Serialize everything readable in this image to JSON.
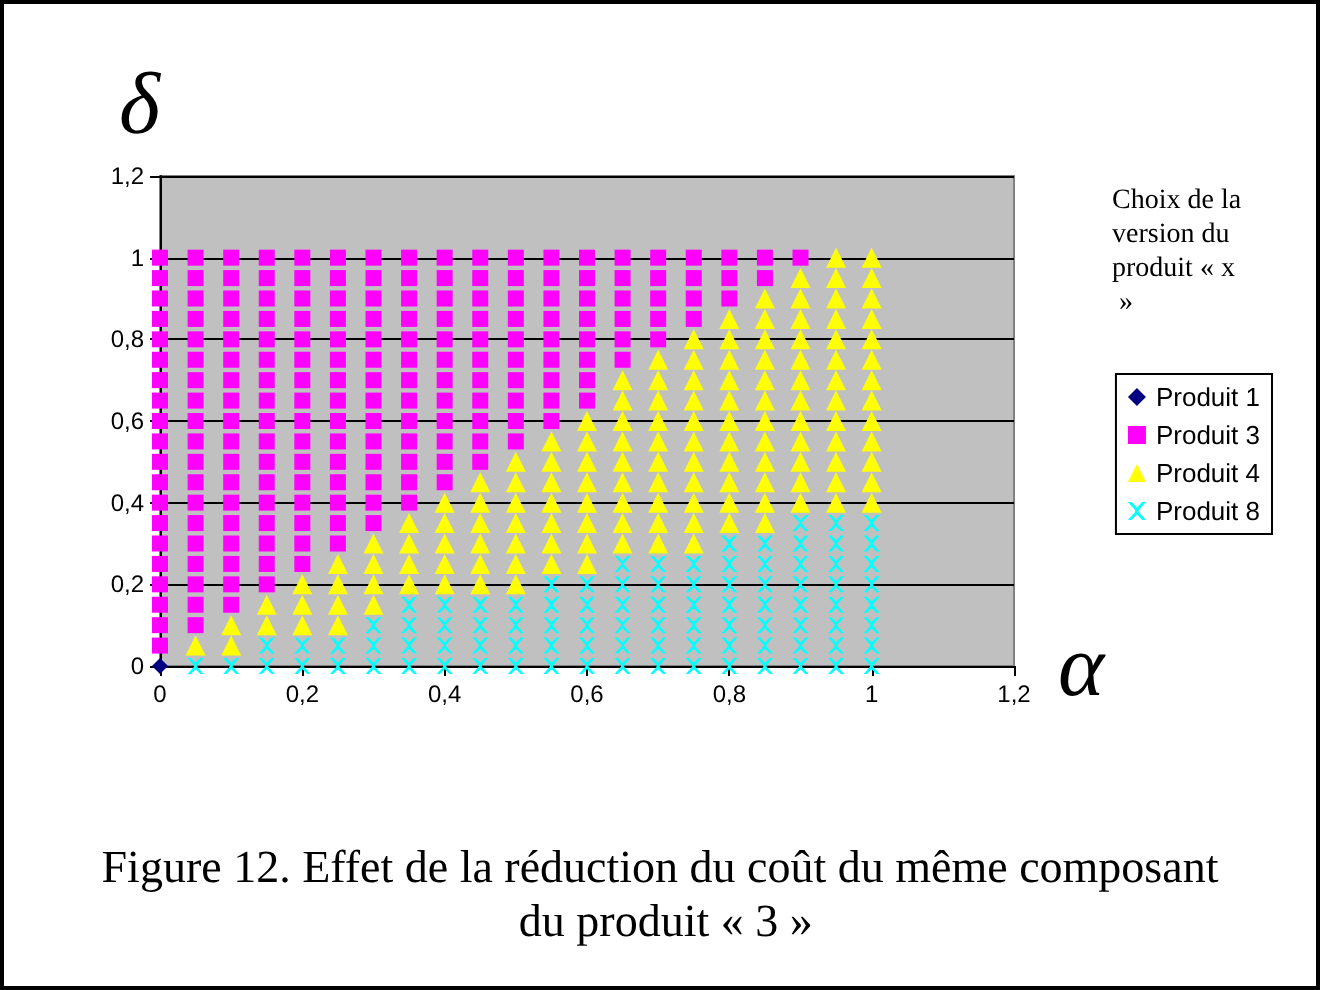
{
  "chart_data": {
    "type": "scatter",
    "title": "Figure 12. Effet de la réduction du coût du même composant du produit « 3 »",
    "xlabel": "α",
    "ylabel": "δ",
    "legend_title": "Choix de la version du produit « x »",
    "xlim": [
      0,
      1.2
    ],
    "ylim": [
      0,
      1.2
    ],
    "xticks": [
      0,
      {
        "value": 0.2,
        "label": "0,2"
      },
      {
        "value": 0.4,
        "label": "0,4"
      },
      {
        "value": 0.6,
        "label": "0,6"
      },
      {
        "value": 0.8,
        "label": "0,8"
      },
      1,
      {
        "value": 1.2,
        "label": "1,2"
      }
    ],
    "yticks": [
      0,
      {
        "value": 0.2,
        "label": "0,2"
      },
      {
        "value": 0.4,
        "label": "0,4"
      },
      {
        "value": 0.6,
        "label": "0,6"
      },
      {
        "value": 0.8,
        "label": "0,8"
      },
      1,
      {
        "value": 1.2,
        "label": "1,2"
      }
    ],
    "grid": "y",
    "legend": "right",
    "series": [
      {
        "name": "Produit 1",
        "color": "#000080",
        "marker": "diamond",
        "x": [
          0
        ],
        "values": [
          0
        ]
      },
      {
        "name": "Produit 3",
        "color": "#ff00ff",
        "marker": "square",
        "x": [
          0,
          0,
          0,
          0,
          0,
          0,
          0,
          0,
          0,
          0,
          0,
          0,
          0,
          0,
          0,
          0,
          0,
          0,
          0,
          0,
          0.05,
          0.05,
          0.05,
          0.05,
          0.05,
          0.05,
          0.05,
          0.05,
          0.05,
          0.05,
          0.05,
          0.05,
          0.05,
          0.05,
          0.05,
          0.05,
          0.05,
          0.05,
          0.05,
          0.1,
          0.1,
          0.1,
          0.1,
          0.1,
          0.1,
          0.1,
          0.1,
          0.1,
          0.1,
          0.1,
          0.1,
          0.1,
          0.1,
          0.1,
          0.1,
          0.1,
          0.1,
          0.15,
          0.15,
          0.15,
          0.15,
          0.15,
          0.15,
          0.15,
          0.15,
          0.15,
          0.15,
          0.15,
          0.15,
          0.15,
          0.15,
          0.15,
          0.15,
          0.15,
          0.2,
          0.2,
          0.2,
          0.2,
          0.2,
          0.2,
          0.2,
          0.2,
          0.2,
          0.2,
          0.2,
          0.2,
          0.2,
          0.2,
          0.2,
          0.2,
          0.25,
          0.25,
          0.25,
          0.25,
          0.25,
          0.25,
          0.25,
          0.25,
          0.25,
          0.25,
          0.25,
          0.25,
          0.25,
          0.25,
          0.25,
          0.3,
          0.3,
          0.3,
          0.3,
          0.3,
          0.3,
          0.3,
          0.3,
          0.3,
          0.3,
          0.3,
          0.3,
          0.3,
          0.3,
          0.35,
          0.35,
          0.35,
          0.35,
          0.35,
          0.35,
          0.35,
          0.35,
          0.35,
          0.35,
          0.35,
          0.35,
          0.35,
          0.4,
          0.4,
          0.4,
          0.4,
          0.4,
          0.4,
          0.4,
          0.4,
          0.4,
          0.4,
          0.4,
          0.4,
          0.45,
          0.45,
          0.45,
          0.45,
          0.45,
          0.45,
          0.45,
          0.45,
          0.45,
          0.45,
          0.45,
          0.5,
          0.5,
          0.5,
          0.5,
          0.5,
          0.5,
          0.5,
          0.5,
          0.5,
          0.5,
          0.55,
          0.55,
          0.55,
          0.55,
          0.55,
          0.55,
          0.55,
          0.55,
          0.55,
          0.6,
          0.6,
          0.6,
          0.6,
          0.6,
          0.6,
          0.6,
          0.6,
          0.65,
          0.65,
          0.65,
          0.65,
          0.65,
          0.65,
          0.7,
          0.7,
          0.7,
          0.7,
          0.7,
          0.75,
          0.75,
          0.75,
          0.75,
          0.8,
          0.8,
          0.8,
          0.85,
          0.85,
          0.9
        ],
        "values": [
          0.05,
          0.1,
          0.15,
          0.2,
          0.25,
          0.3,
          0.35,
          0.4,
          0.45,
          0.5,
          0.55,
          0.6,
          0.65,
          0.7,
          0.75,
          0.8,
          0.85,
          0.9,
          0.95,
          1,
          0.1,
          0.15,
          0.2,
          0.25,
          0.3,
          0.35,
          0.4,
          0.45,
          0.5,
          0.55,
          0.6,
          0.65,
          0.7,
          0.75,
          0.8,
          0.85,
          0.9,
          0.95,
          1,
          0.15,
          0.2,
          0.25,
          0.3,
          0.35,
          0.4,
          0.45,
          0.5,
          0.55,
          0.6,
          0.65,
          0.7,
          0.75,
          0.8,
          0.85,
          0.9,
          0.95,
          1,
          0.2,
          0.25,
          0.3,
          0.35,
          0.4,
          0.45,
          0.5,
          0.55,
          0.6,
          0.65,
          0.7,
          0.75,
          0.8,
          0.85,
          0.9,
          0.95,
          1,
          0.25,
          0.3,
          0.35,
          0.4,
          0.45,
          0.5,
          0.55,
          0.6,
          0.65,
          0.7,
          0.75,
          0.8,
          0.85,
          0.9,
          0.95,
          1,
          0.3,
          0.35,
          0.4,
          0.45,
          0.5,
          0.55,
          0.6,
          0.65,
          0.7,
          0.75,
          0.8,
          0.85,
          0.9,
          0.95,
          1,
          0.35,
          0.4,
          0.45,
          0.5,
          0.55,
          0.6,
          0.65,
          0.7,
          0.75,
          0.8,
          0.85,
          0.9,
          0.95,
          1,
          0.4,
          0.45,
          0.5,
          0.55,
          0.6,
          0.65,
          0.7,
          0.75,
          0.8,
          0.85,
          0.9,
          0.95,
          1,
          0.45,
          0.5,
          0.55,
          0.6,
          0.65,
          0.7,
          0.75,
          0.8,
          0.85,
          0.9,
          0.95,
          1,
          0.5,
          0.55,
          0.6,
          0.65,
          0.7,
          0.75,
          0.8,
          0.85,
          0.9,
          0.95,
          1,
          0.55,
          0.6,
          0.65,
          0.7,
          0.75,
          0.8,
          0.85,
          0.9,
          0.95,
          1,
          0.6,
          0.65,
          0.7,
          0.75,
          0.8,
          0.85,
          0.9,
          0.95,
          1,
          0.65,
          0.7,
          0.75,
          0.8,
          0.85,
          0.9,
          0.95,
          1,
          0.75,
          0.8,
          0.85,
          0.9,
          0.95,
          1,
          0.8,
          0.85,
          0.9,
          0.95,
          1,
          0.85,
          0.9,
          0.95,
          1,
          0.9,
          0.95,
          1,
          0.95,
          1,
          1
        ]
      },
      {
        "name": "Produit 4",
        "color": "#ffff00",
        "marker": "triangle",
        "x": [
          0.05,
          0.1,
          0.1,
          0.15,
          0.15,
          0.2,
          0.2,
          0.2,
          0.25,
          0.25,
          0.25,
          0.25,
          0.3,
          0.3,
          0.3,
          0.3,
          0.35,
          0.35,
          0.35,
          0.35,
          0.4,
          0.4,
          0.4,
          0.4,
          0.4,
          0.45,
          0.45,
          0.45,
          0.45,
          0.45,
          0.45,
          0.5,
          0.5,
          0.5,
          0.5,
          0.5,
          0.5,
          0.5,
          0.55,
          0.55,
          0.55,
          0.55,
          0.55,
          0.55,
          0.55,
          0.6,
          0.6,
          0.6,
          0.6,
          0.6,
          0.6,
          0.6,
          0.6,
          0.65,
          0.65,
          0.65,
          0.65,
          0.65,
          0.65,
          0.65,
          0.65,
          0.65,
          0.7,
          0.7,
          0.7,
          0.7,
          0.7,
          0.7,
          0.7,
          0.7,
          0.7,
          0.7,
          0.75,
          0.75,
          0.75,
          0.75,
          0.75,
          0.75,
          0.75,
          0.75,
          0.75,
          0.75,
          0.75,
          0.8,
          0.8,
          0.8,
          0.8,
          0.8,
          0.8,
          0.8,
          0.8,
          0.8,
          0.8,
          0.8,
          0.85,
          0.85,
          0.85,
          0.85,
          0.85,
          0.85,
          0.85,
          0.85,
          0.85,
          0.85,
          0.85,
          0.85,
          0.9,
          0.9,
          0.9,
          0.9,
          0.9,
          0.9,
          0.9,
          0.9,
          0.9,
          0.9,
          0.9,
          0.9,
          0.95,
          0.95,
          0.95,
          0.95,
          0.95,
          0.95,
          0.95,
          0.95,
          0.95,
          0.95,
          0.95,
          0.95,
          0.95,
          1,
          1,
          1,
          1,
          1,
          1,
          1,
          1,
          1,
          1,
          1,
          1,
          1
        ],
        "values": [
          0.05,
          0.05,
          0.1,
          0.1,
          0.15,
          0.1,
          0.15,
          0.2,
          0.1,
          0.15,
          0.2,
          0.25,
          0.15,
          0.2,
          0.25,
          0.3,
          0.2,
          0.25,
          0.3,
          0.35,
          0.2,
          0.25,
          0.3,
          0.35,
          0.4,
          0.2,
          0.25,
          0.3,
          0.35,
          0.4,
          0.45,
          0.2,
          0.25,
          0.3,
          0.35,
          0.4,
          0.45,
          0.5,
          0.25,
          0.3,
          0.35,
          0.4,
          0.45,
          0.5,
          0.55,
          0.25,
          0.3,
          0.35,
          0.4,
          0.45,
          0.5,
          0.55,
          0.6,
          0.3,
          0.35,
          0.4,
          0.45,
          0.5,
          0.55,
          0.6,
          0.65,
          0.7,
          0.3,
          0.35,
          0.4,
          0.45,
          0.5,
          0.55,
          0.6,
          0.65,
          0.7,
          0.75,
          0.3,
          0.35,
          0.4,
          0.45,
          0.5,
          0.55,
          0.6,
          0.65,
          0.7,
          0.75,
          0.8,
          0.35,
          0.4,
          0.45,
          0.5,
          0.55,
          0.6,
          0.65,
          0.7,
          0.75,
          0.8,
          0.85,
          0.35,
          0.4,
          0.45,
          0.5,
          0.55,
          0.6,
          0.65,
          0.7,
          0.75,
          0.8,
          0.85,
          0.9,
          0.4,
          0.45,
          0.5,
          0.55,
          0.6,
          0.65,
          0.7,
          0.75,
          0.8,
          0.85,
          0.9,
          0.95,
          0.4,
          0.45,
          0.5,
          0.55,
          0.6,
          0.65,
          0.7,
          0.75,
          0.8,
          0.85,
          0.9,
          0.95,
          1,
          0.4,
          0.45,
          0.5,
          0.55,
          0.6,
          0.65,
          0.7,
          0.75,
          0.8,
          0.85,
          0.9,
          0.95,
          1
        ]
      },
      {
        "name": "Produit 8",
        "color": "#00ffff",
        "marker": "cross",
        "x": [
          0.05,
          0.1,
          0.15,
          0.15,
          0.2,
          0.2,
          0.25,
          0.25,
          0.3,
          0.3,
          0.3,
          0.35,
          0.35,
          0.35,
          0.35,
          0.4,
          0.4,
          0.4,
          0.4,
          0.45,
          0.45,
          0.45,
          0.45,
          0.5,
          0.5,
          0.5,
          0.5,
          0.55,
          0.55,
          0.55,
          0.55,
          0.55,
          0.6,
          0.6,
          0.6,
          0.6,
          0.6,
          0.65,
          0.65,
          0.65,
          0.65,
          0.65,
          0.65,
          0.7,
          0.7,
          0.7,
          0.7,
          0.7,
          0.7,
          0.75,
          0.75,
          0.75,
          0.75,
          0.75,
          0.75,
          0.8,
          0.8,
          0.8,
          0.8,
          0.8,
          0.8,
          0.8,
          0.85,
          0.85,
          0.85,
          0.85,
          0.85,
          0.85,
          0.85,
          0.9,
          0.9,
          0.9,
          0.9,
          0.9,
          0.9,
          0.9,
          0.9,
          0.95,
          0.95,
          0.95,
          0.95,
          0.95,
          0.95,
          0.95,
          0.95,
          1,
          1,
          1,
          1,
          1,
          1,
          1,
          1
        ],
        "values": [
          0,
          0,
          0,
          0.05,
          0,
          0.05,
          0,
          0.05,
          0,
          0.05,
          0.1,
          0,
          0.05,
          0.1,
          0.15,
          0,
          0.05,
          0.1,
          0.15,
          0,
          0.05,
          0.1,
          0.15,
          0,
          0.05,
          0.1,
          0.15,
          0,
          0.05,
          0.1,
          0.15,
          0.2,
          0,
          0.05,
          0.1,
          0.15,
          0.2,
          0,
          0.05,
          0.1,
          0.15,
          0.2,
          0.25,
          0,
          0.05,
          0.1,
          0.15,
          0.2,
          0.25,
          0,
          0.05,
          0.1,
          0.15,
          0.2,
          0.25,
          0,
          0.05,
          0.1,
          0.15,
          0.2,
          0.25,
          0.3,
          0,
          0.05,
          0.1,
          0.15,
          0.2,
          0.25,
          0.3,
          0,
          0.05,
          0.1,
          0.15,
          0.2,
          0.25,
          0.3,
          0.35,
          0,
          0.05,
          0.1,
          0.15,
          0.2,
          0.25,
          0.3,
          0.35,
          0,
          0.05,
          0.1,
          0.15,
          0.2,
          0.25,
          0.3,
          0.35
        ]
      }
    ]
  }
}
